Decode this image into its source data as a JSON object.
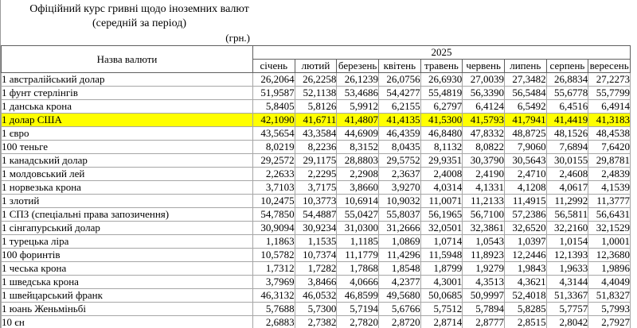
{
  "title": {
    "line1": "Офіційний курс гривні щодо іноземних валют",
    "line2": "(середній за період)",
    "unit": "(грн.)"
  },
  "table": {
    "name_header": "Назва валюти",
    "year_header": "2025",
    "months": [
      "січень",
      "лютий",
      "березень",
      "квітень",
      "травень",
      "червень",
      "липень",
      "серпень",
      "вересень"
    ],
    "highlight_color": "#ffff00",
    "rows": [
      {
        "name": "1 австралійський долар",
        "highlight": false,
        "values": [
          "26,2064",
          "26,2258",
          "26,1239",
          "26,0756",
          "26,6930",
          "27,0039",
          "27,3482",
          "26,8834",
          "27,2273"
        ]
      },
      {
        "name": "1 фунт стерлінгів",
        "highlight": false,
        "values": [
          "51,9587",
          "52,1138",
          "53,4686",
          "54,4277",
          "55,4819",
          "56,3390",
          "56,5484",
          "55,6778",
          "55,7799"
        ]
      },
      {
        "name": "1 данська крона",
        "highlight": false,
        "values": [
          "5,8405",
          "5,8126",
          "5,9912",
          "6,2155",
          "6,2797",
          "6,4124",
          "6,5492",
          "6,4516",
          "6,4914"
        ]
      },
      {
        "name": "1 долар США",
        "highlight": true,
        "values": [
          "42,1090",
          "41,6711",
          "41,4807",
          "41,4135",
          "41,5300",
          "41,5793",
          "41,7941",
          "41,4419",
          "41,3183"
        ]
      },
      {
        "name": "1 євро",
        "highlight": false,
        "values": [
          "43,5654",
          "43,3584",
          "44,6909",
          "46,4359",
          "46,8480",
          "47,8332",
          "48,8725",
          "48,1526",
          "48,4538"
        ]
      },
      {
        "name": "100 теньге",
        "highlight": false,
        "values": [
          "8,0219",
          "8,2236",
          "8,3152",
          "8,0435",
          "8,1132",
          "8,0822",
          "7,9060",
          "7,6894",
          "7,6420"
        ]
      },
      {
        "name": "1 канадський долар",
        "highlight": false,
        "values": [
          "29,2572",
          "29,1175",
          "28,8803",
          "29,5752",
          "29,9351",
          "30,3790",
          "30,5643",
          "30,0155",
          "29,8781"
        ]
      },
      {
        "name": "1 молдовський лей",
        "highlight": false,
        "values": [
          "2,2633",
          "2,2295",
          "2,2908",
          "2,3637",
          "2,4008",
          "2,4190",
          "2,4710",
          "2,4608",
          "2,4839"
        ]
      },
      {
        "name": "1 норвезька крона",
        "highlight": false,
        "values": [
          "3,7103",
          "3,7175",
          "3,8660",
          "3,9270",
          "4,0314",
          "4,1331",
          "4,1208",
          "4,0617",
          "4,1539"
        ]
      },
      {
        "name": "1 злотий",
        "highlight": false,
        "values": [
          "10,2475",
          "10,3773",
          "10,6914",
          "10,9032",
          "11,0071",
          "11,2133",
          "11,4915",
          "11,2992",
          "11,3777"
        ]
      },
      {
        "name": "1 СПЗ (спеціальні права запозичення)",
        "highlight": false,
        "values": [
          "54,7850",
          "54,4887",
          "55,0427",
          "55,8037",
          "56,1965",
          "56,7100",
          "57,2386",
          "56,5811",
          "56,6431"
        ]
      },
      {
        "name": "1 сінгапурський долар",
        "highlight": false,
        "values": [
          "30,9094",
          "30,9234",
          "31,0300",
          "31,2666",
          "32,0501",
          "32,3861",
          "32,6520",
          "32,2160",
          "32,1529"
        ]
      },
      {
        "name": "1 турецька ліра",
        "highlight": false,
        "values": [
          "1,1863",
          "1,1535",
          "1,1185",
          "1,0869",
          "1,0714",
          "1,0543",
          "1,0397",
          "1,0154",
          "1,0001"
        ]
      },
      {
        "name": "100 форинтів",
        "highlight": false,
        "values": [
          "10,5782",
          "10,7374",
          "11,1779",
          "11,4296",
          "11,5948",
          "11,8923",
          "12,2446",
          "12,1393",
          "12,3680"
        ]
      },
      {
        "name": "1 чеська крона",
        "highlight": false,
        "values": [
          "1,7312",
          "1,7282",
          "1,7868",
          "1,8548",
          "1,8799",
          "1,9279",
          "1,9843",
          "1,9633",
          "1,9896"
        ]
      },
      {
        "name": "1 шведська крона",
        "highlight": false,
        "values": [
          "3,7969",
          "3,8466",
          "4,0666",
          "4,2377",
          "4,3001",
          "4,3513",
          "4,3621",
          "4,3144",
          "4,4049"
        ]
      },
      {
        "name": "1 швейцарський франк",
        "highlight": false,
        "values": [
          "46,3132",
          "46,0532",
          "46,8599",
          "49,5680",
          "50,0685",
          "50,9997",
          "52,4018",
          "51,3367",
          "51,8327"
        ]
      },
      {
        "name": "1 юань Женьміньбі",
        "highlight": false,
        "values": [
          "5,7688",
          "5,7300",
          "5,7194",
          "5,6766",
          "5,7512",
          "5,7894",
          "5,8285",
          "5,7757",
          "5,7993"
        ]
      },
      {
        "name": "10 єн",
        "highlight": false,
        "values": [
          "2,6883",
          "2,7382",
          "2,7820",
          "2,8720",
          "2,8714",
          "2,8777",
          "2,8515",
          "2,8042",
          "2,7927"
        ]
      }
    ]
  }
}
